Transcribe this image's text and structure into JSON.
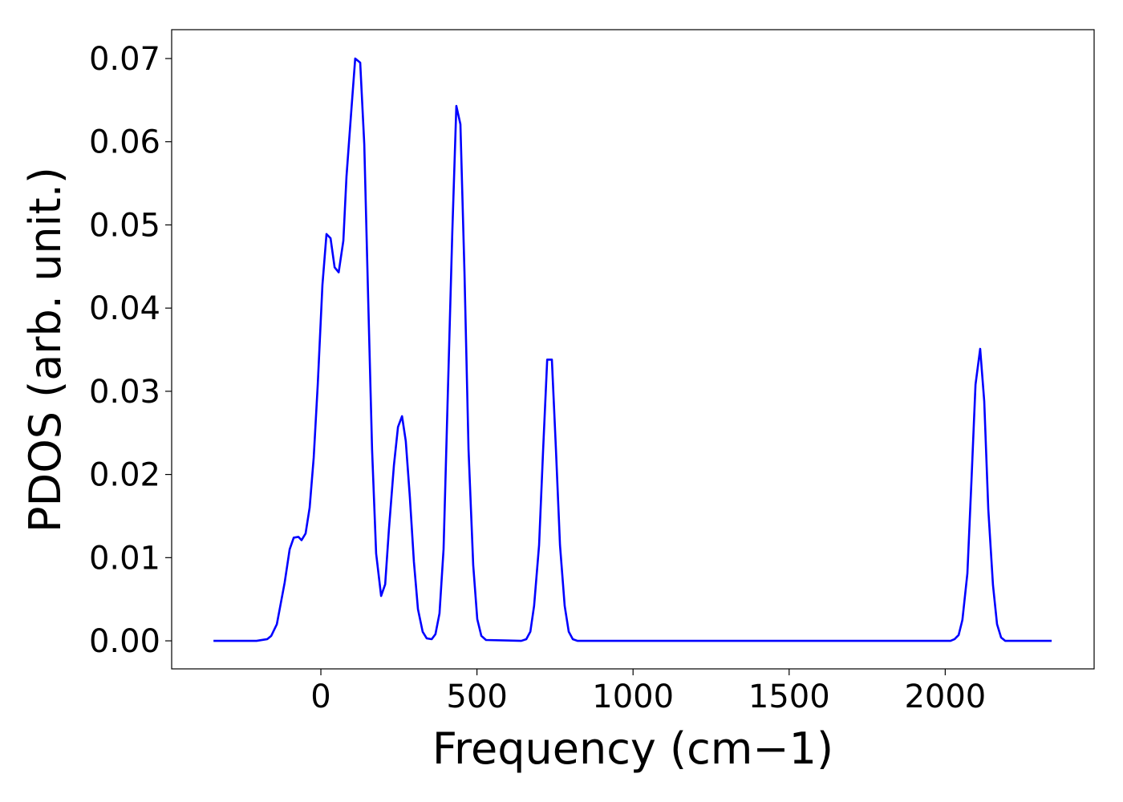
{
  "chart_data": {
    "type": "line",
    "xlabel": "Frequency (cm−1)",
    "ylabel": "PDOS (arb. unit.)",
    "xlim": [
      -478,
      2477
    ],
    "ylim": [
      -0.00337,
      0.07347
    ],
    "xticks": [
      0,
      500,
      1000,
      1500,
      2000
    ],
    "yticks": [
      {
        "value": 0,
        "label": "0.00"
      },
      0.01,
      0.02,
      0.03,
      0.04,
      0.05,
      0.06,
      0.07
    ],
    "x": [
      -344,
      -206,
      -172,
      -159,
      -141,
      -131,
      -116,
      -100,
      -87,
      -72,
      -62,
      -49,
      -36,
      -23,
      -10,
      5,
      18,
      31,
      44,
      57,
      72,
      82,
      98,
      110,
      126,
      139,
      152,
      164,
      177,
      193,
      206,
      218,
      234,
      247,
      260,
      272,
      285,
      298,
      311,
      326,
      339,
      355,
      367,
      380,
      393,
      406,
      421,
      434,
      447,
      460,
      473,
      488,
      501,
      514,
      529,
      642,
      658,
      671,
      683,
      699,
      712,
      725,
      740,
      753,
      766,
      781,
      794,
      807,
      822,
      2017,
      2030,
      2043,
      2055,
      2071,
      2084,
      2097,
      2112,
      2125,
      2138,
      2153,
      2166,
      2179,
      2192,
      2341
    ],
    "series": [
      {
        "color": "#0000ff",
        "values": [
          0,
          0,
          0.0002,
          0.0006,
          0.002,
          0.004,
          0.007,
          0.011,
          0.0124,
          0.0125,
          0.0121,
          0.0129,
          0.016,
          0.022,
          0.0308,
          0.0428,
          0.0489,
          0.0484,
          0.0449,
          0.0443,
          0.0481,
          0.0558,
          0.064,
          0.07,
          0.0695,
          0.0597,
          0.0404,
          0.023,
          0.0105,
          0.0054,
          0.0068,
          0.0134,
          0.0211,
          0.0257,
          0.027,
          0.024,
          0.0173,
          0.0095,
          0.0038,
          0.0011,
          0.0003,
          0.0002,
          0.0008,
          0.0033,
          0.011,
          0.0288,
          0.0491,
          0.0643,
          0.0621,
          0.0443,
          0.023,
          0.0091,
          0.0026,
          0.0006,
          0.0001,
          0,
          0.0002,
          0.0011,
          0.0042,
          0.0115,
          0.023,
          0.0338,
          0.0338,
          0.023,
          0.0115,
          0.0042,
          0.0011,
          0.0002,
          0,
          0,
          0.0002,
          0.0007,
          0.0025,
          0.0081,
          0.0192,
          0.0308,
          0.0351,
          0.0288,
          0.0158,
          0.0067,
          0.002,
          0.0004,
          0,
          0
        ]
      }
    ]
  }
}
